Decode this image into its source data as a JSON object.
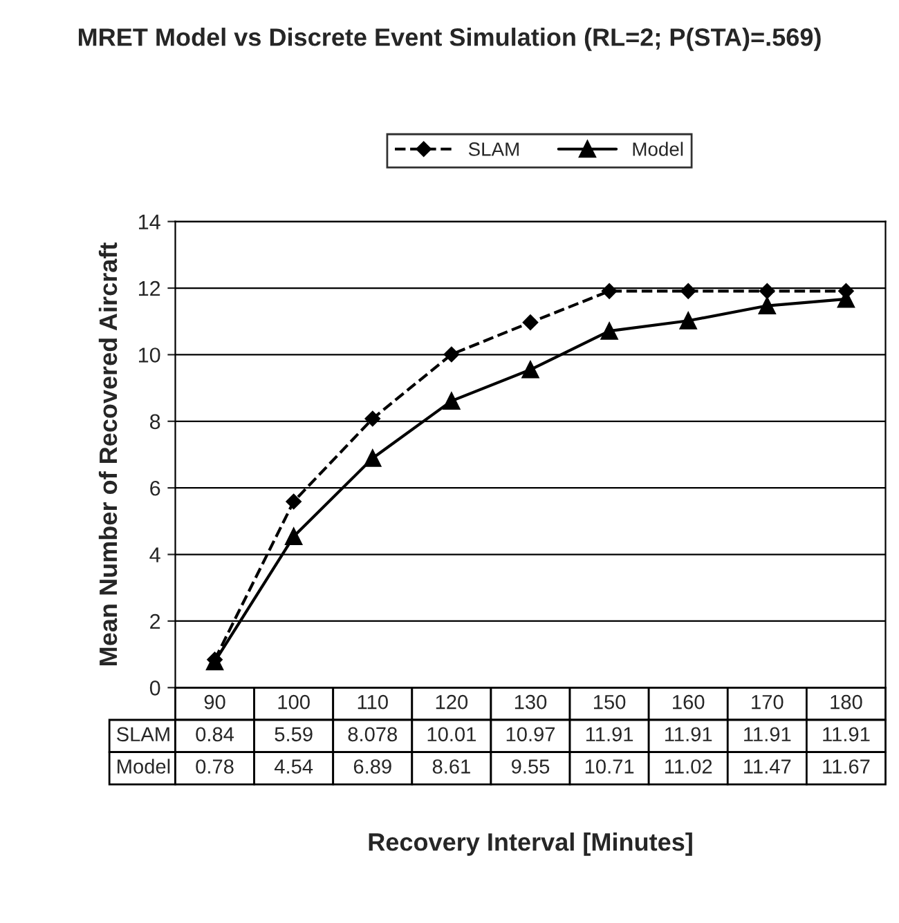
{
  "chart_data": {
    "type": "line",
    "title": "MRET Model vs Discrete Event Simulation (RL=2; P(STA)=.569)",
    "xlabel": "Recovery Interval [Minutes]",
    "ylabel": "Mean Number of Recovered Aircraft",
    "categories": [
      "90",
      "100",
      "110",
      "120",
      "130",
      "150",
      "160",
      "170",
      "180"
    ],
    "series": [
      {
        "name": "SLAM",
        "color": "#000000",
        "marker": "diamond",
        "line_style": "dashed",
        "values": [
          0.84,
          5.59,
          8.078,
          10.01,
          10.97,
          11.91,
          11.91,
          11.91,
          11.91
        ]
      },
      {
        "name": "Model",
        "color": "#000000",
        "marker": "triangle",
        "line_style": "solid",
        "values": [
          0.78,
          4.54,
          6.89,
          8.61,
          9.55,
          10.71,
          11.02,
          11.47,
          11.67
        ]
      }
    ],
    "ylim": [
      0,
      14
    ],
    "yticks": [
      0,
      2,
      4,
      6,
      8,
      10,
      12,
      14
    ],
    "grid": "y",
    "legend": "top",
    "data_labels": true
  }
}
